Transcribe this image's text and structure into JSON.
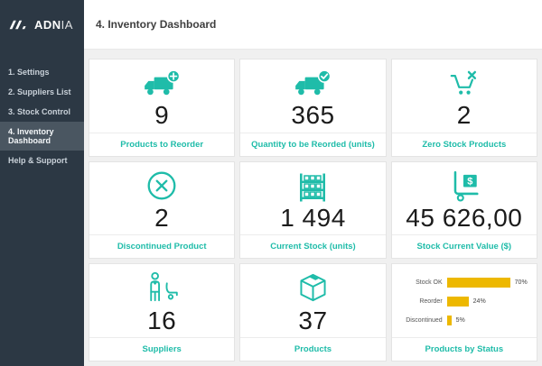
{
  "brand": {
    "name_bold": "ADN",
    "name_light": "IA"
  },
  "header": {
    "title": "4. Inventory Dashboard"
  },
  "sidebar": {
    "items": [
      {
        "label": "1. Settings",
        "active": false
      },
      {
        "label": "2. Suppliers List",
        "active": false
      },
      {
        "label": "3. Stock Control",
        "active": false
      },
      {
        "label": "4. Inventory Dashboard",
        "active": true
      },
      {
        "label": "Help & Support",
        "active": false
      }
    ]
  },
  "cards": [
    {
      "icon": "truck-plus-icon",
      "value": "9",
      "label": "Products to Reorder"
    },
    {
      "icon": "truck-check-icon",
      "value": "365",
      "label": "Quantity to be Reorded (units)"
    },
    {
      "icon": "cart-x-icon",
      "value": "2",
      "label": "Zero Stock Products"
    },
    {
      "icon": "circle-x-icon",
      "value": "2",
      "label": "Discontinued Product"
    },
    {
      "icon": "shelf-icon",
      "value": "1 494",
      "label": "Current Stock (units)"
    },
    {
      "icon": "dolly-dollar-icon",
      "value": "45 626,00",
      "label": "Stock Current Value ($)"
    },
    {
      "icon": "person-dolly-icon",
      "value": "16",
      "label": "Suppliers"
    },
    {
      "icon": "box-icon",
      "value": "37",
      "label": "Products"
    },
    {
      "icon": "bar-chart",
      "value": "",
      "label": "Products by Status"
    }
  ],
  "chart_data": {
    "type": "bar",
    "orientation": "horizontal",
    "title": "Products by Status",
    "categories": [
      "Stock OK",
      "Reorder",
      "Discontinued"
    ],
    "values": [
      70,
      24,
      5
    ],
    "value_labels": [
      "70%",
      "24%",
      "5%"
    ],
    "xlim": [
      0,
      100
    ],
    "bar_color": "#EDB800",
    "legend": false,
    "grid": false
  },
  "colors": {
    "accent_teal": "#1FBCA9",
    "sidebar_bg": "#2C3844",
    "sidebar_active_bg": "#4A5661",
    "chart_yellow": "#EDB800",
    "content_bg": "#F0F0F0"
  }
}
